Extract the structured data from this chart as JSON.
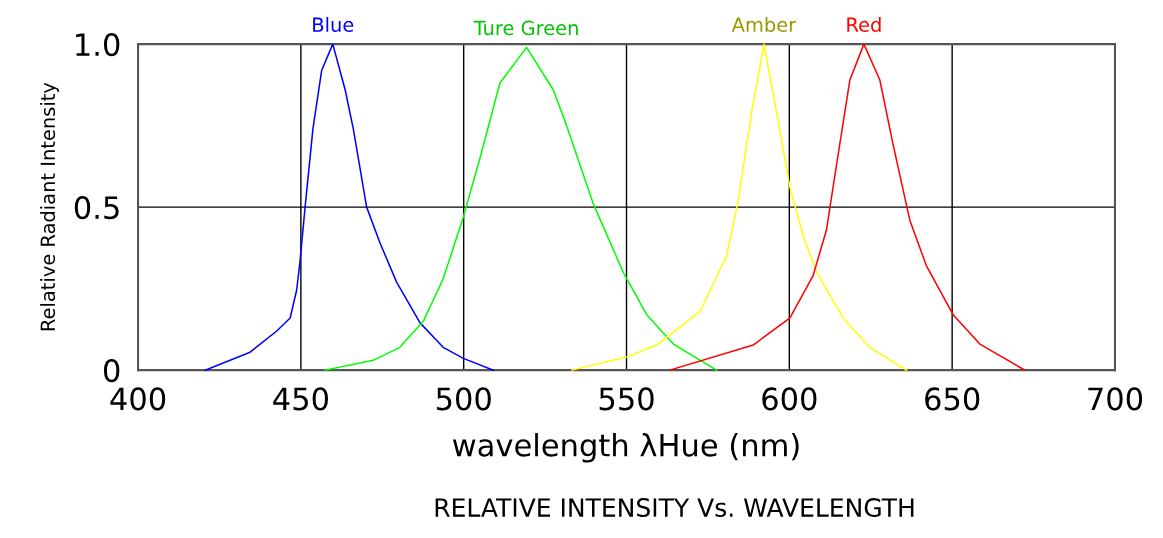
{
  "chart_data": {
    "type": "line",
    "title": "RELATIVE INTENSITY Vs. WAVELENGTH",
    "xlabel": "wavelength λHue (nm)",
    "ylabel": "Relative Radiant Intensity",
    "xlim": [
      400,
      700
    ],
    "xticks": [
      400,
      450,
      500,
      550,
      600,
      650,
      700
    ],
    "ylim": [
      0,
      1
    ],
    "yticks": [
      0,
      0.5,
      {
        "value": 1,
        "label": "1.0"
      }
    ],
    "grid": true,
    "legend": false,
    "marker": "none",
    "line_style": "solid",
    "series": [
      {
        "name": "Blue",
        "color": "#0000ff",
        "x": [
          420.6,
          434.4,
          442.6,
          446.7,
          448.7,
          449.7,
          451.3,
          453.7,
          456.4,
          459.8,
          463.6,
          466.1,
          470.2,
          474.3,
          479.4,
          486.6,
          493.7,
          499.9,
          509.1
        ],
        "values": [
          0,
          0.055,
          0.12,
          0.16,
          0.245,
          0.33,
          0.5,
          0.74,
          0.92,
          1.0,
          0.86,
          0.74,
          0.5,
          0.39,
          0.27,
          0.145,
          0.07,
          0.036,
          0
        ]
      },
      {
        "name": "Ture Green",
        "color": "#00ff00",
        "x": [
          457.4,
          472.2,
          480.4,
          487.6,
          493.7,
          499.9,
          505,
          511.1,
          519.3,
          527.5,
          531.6,
          539.8,
          549,
          556.2,
          564.4,
          577.7
        ],
        "values": [
          0,
          0.03,
          0.07,
          0.15,
          0.28,
          0.47,
          0.65,
          0.88,
          0.99,
          0.86,
          0.75,
          0.51,
          0.3,
          0.17,
          0.08,
          0
        ]
      },
      {
        "name": "Amber",
        "color": "#ffff00",
        "x": [
          533.2,
          550,
          559.2,
          572.6,
          580.7,
          584.3,
          588.4,
          592.2,
          596.1,
          600.2,
          604.3,
          608.4,
          616.5,
          624.7,
          636
        ],
        "values": [
          0,
          0.04,
          0.077,
          0.18,
          0.35,
          0.52,
          0.79,
          1.0,
          0.79,
          0.56,
          0.41,
          0.3,
          0.16,
          0.07,
          0
        ]
      },
      {
        "name": "Red",
        "color": "#ff0000",
        "x": [
          563.3,
          588.9,
          600.2,
          607.3,
          611.4,
          614.5,
          618.6,
          622.9,
          627.8,
          631.9,
          637,
          642.1,
          650.3,
          658.5,
          672.3
        ],
        "values": [
          0,
          0.077,
          0.16,
          0.29,
          0.43,
          0.63,
          0.89,
          1.0,
          0.89,
          0.69,
          0.46,
          0.32,
          0.17,
          0.08,
          0
        ]
      }
    ]
  }
}
